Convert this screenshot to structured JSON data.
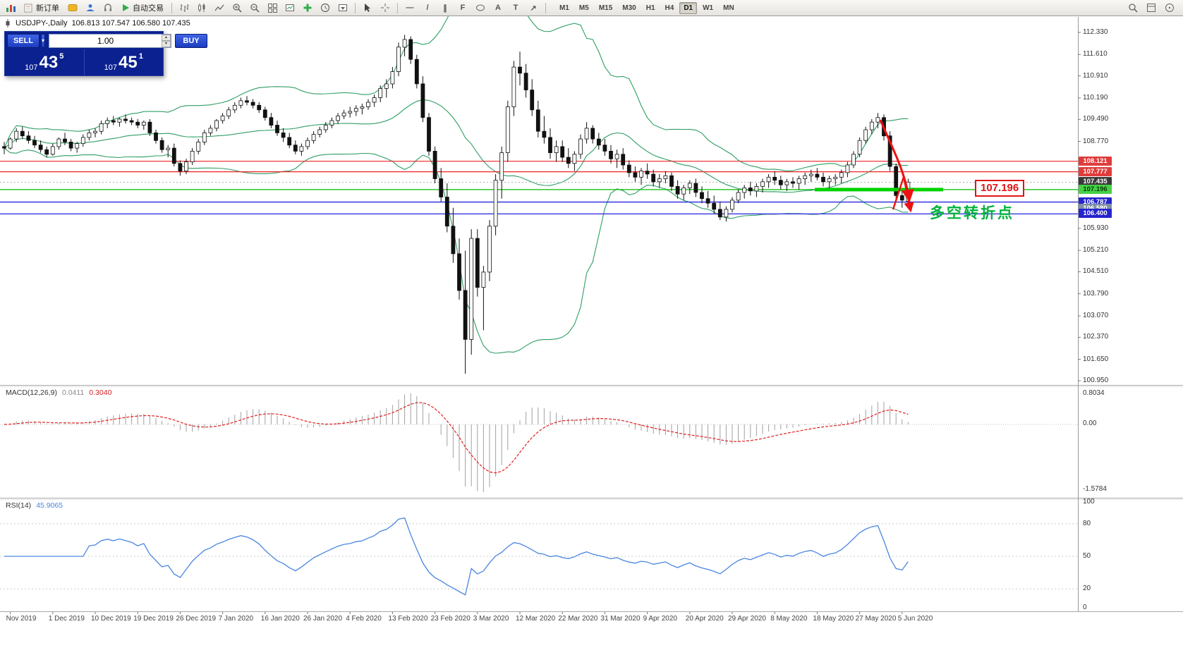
{
  "toolbar": {
    "new_order_label": "新订单",
    "autotrading_label": "自动交易",
    "timeframes": [
      "M1",
      "M5",
      "M15",
      "M30",
      "H1",
      "H4",
      "D1",
      "W1",
      "MN"
    ],
    "active_timeframe": "D1",
    "icons": [
      "terminal-chart-icon",
      "new-order-icon",
      "community-icon",
      "user-profile-icon",
      "support-headset-icon",
      "autotrading-play-icon",
      "bar-chart-mode-icon",
      "candlestick-mode-icon",
      "line-chart-mode-icon",
      "zoom-in-icon",
      "zoom-out-icon",
      "tile-windows-icon",
      "new-chart-icon",
      "indicators-add-icon",
      "periods-clock-icon",
      "templates-icon",
      "cursor-icon",
      "crosshair-icon",
      "horizontal-line-icon",
      "trendline-icon",
      "channel-icon",
      "fibonacci-icon",
      "shapes-icon",
      "text-icon",
      "label-icon",
      "arrows-icon",
      "search-icon",
      "layout-icon",
      "help-icon"
    ]
  },
  "glyphs": {
    "dropdown": "▾",
    "up": "▲",
    "down": "▼",
    "text_tool": "A",
    "label_tool": "T",
    "hline": "—",
    "trendline": "/",
    "channel": "∥",
    "fibo": "F",
    "arrow": "↗"
  },
  "trade_panel": {
    "sell_label": "SELL",
    "buy_label": "BUY",
    "volume": "1.00",
    "sell_price": {
      "whole": "107",
      "pips": "43",
      "point": "5"
    },
    "buy_price": {
      "whole": "107",
      "pips": "45",
      "point": "1"
    }
  },
  "chart": {
    "symbol_period": "USDJPY-,Daily",
    "ohlc": "106.813 107.547 106.580 107.435"
  },
  "price_axis": {
    "grid_labels": [
      "112.330",
      "111.610",
      "110.910",
      "110.190",
      "109.490",
      "108.770",
      "105.930",
      "105.210",
      "104.510",
      "103.790",
      "103.070",
      "102.370",
      "101.650",
      "100.950"
    ],
    "tags": [
      {
        "text": "108.121",
        "bg": "#e03c3c",
        "fg": "#ffffff"
      },
      {
        "text": "107.777",
        "bg": "#e03c3c",
        "fg": "#ffffff"
      },
      {
        "text": "107.435",
        "bg": "#3a3a3a",
        "fg": "#ffffff"
      },
      {
        "text": "107.196",
        "bg": "#47d147",
        "fg": "#053805"
      },
      {
        "text": "106.787",
        "bg": "#2525cc",
        "fg": "#ffffff"
      },
      {
        "text": "106.580",
        "bg": "#7f8fa6",
        "fg": "#ffffff"
      },
      {
        "text": "106.400",
        "bg": "#2525cc",
        "fg": "#ffffff"
      }
    ]
  },
  "indicators": {
    "macd": {
      "label": "MACD(12,26,9)",
      "value_main": "0.0411",
      "value_signal": "0.3040",
      "axis": [
        "0.8034",
        "0.00",
        "-1.5784"
      ]
    },
    "rsi": {
      "label": "RSI(14)",
      "value": "45.9065",
      "axis": [
        "100",
        "80",
        "50",
        "20",
        "0"
      ]
    }
  },
  "annotations": {
    "support_label": "107.196",
    "turning_point": "多空转折点"
  },
  "x_axis": {
    "labels": [
      "Nov 2019",
      "1 Dec 2019",
      "10 Dec 2019",
      "19 Dec 2019",
      "26 Dec 2019",
      "7 Jan 2020",
      "16 Jan 2020",
      "26 Jan 2020",
      "4 Feb 2020",
      "13 Feb 2020",
      "23 Feb 2020",
      "3 Mar 2020",
      "12 Mar 2020",
      "22 Mar 2020",
      "31 Mar 2020",
      "9 Apr 2020",
      "20 Apr 2020",
      "29 Apr 2020",
      "8 May 2020",
      "18 May 2020",
      "27 May 2020",
      "5 Jun 2020"
    ]
  },
  "chart_data": {
    "type": "candlestick",
    "symbol": "USDJPY",
    "period": "Daily",
    "title": "USDJPY-,Daily",
    "bid": 107.435,
    "support_level": 107.196,
    "price_range": [
      100.95,
      112.33
    ],
    "bollinger": {
      "period": 20,
      "deviation": 2
    },
    "macd": {
      "fast": 12,
      "slow": 26,
      "signal": 9,
      "current_main": 0.0411,
      "current_signal": 0.304,
      "scale_max": 0.8034,
      "scale_min": -1.5784
    },
    "rsi": {
      "period": 14,
      "current": 45.9065,
      "levels": [
        80,
        50,
        20
      ]
    },
    "levels": [
      {
        "price": 108.121,
        "color": "#ee2222",
        "width": 1.2
      },
      {
        "price": 107.777,
        "color": "#ee2222",
        "width": 1.2
      },
      {
        "price": 107.196,
        "color": "#00bb00",
        "width": 1.2
      },
      {
        "price": 106.787,
        "color": "#2525dd",
        "width": 1.4
      },
      {
        "price": 106.4,
        "color": "#2525dd",
        "width": 1.2
      }
    ],
    "candles": [
      [
        108.6,
        108.75,
        108.35,
        108.55
      ],
      [
        108.55,
        108.9,
        108.5,
        108.85
      ],
      [
        108.85,
        109.2,
        108.75,
        109.1
      ],
      [
        109.1,
        109.25,
        108.85,
        108.95
      ],
      [
        108.95,
        109.1,
        108.7,
        108.8
      ],
      [
        108.8,
        108.95,
        108.55,
        108.65
      ],
      [
        108.65,
        108.8,
        108.4,
        108.5
      ],
      [
        108.5,
        108.6,
        108.25,
        108.35
      ],
      [
        108.35,
        108.7,
        108.3,
        108.6
      ],
      [
        108.6,
        108.9,
        108.5,
        108.85
      ],
      [
        108.85,
        109.05,
        108.65,
        108.75
      ],
      [
        108.75,
        108.85,
        108.45,
        108.55
      ],
      [
        108.55,
        108.75,
        108.4,
        108.7
      ],
      [
        108.7,
        109.0,
        108.6,
        108.9
      ],
      [
        108.9,
        109.15,
        108.8,
        109.05
      ],
      [
        109.05,
        109.2,
        108.9,
        109.1
      ],
      [
        109.1,
        109.45,
        109.0,
        109.35
      ],
      [
        109.35,
        109.55,
        109.2,
        109.45
      ],
      [
        109.45,
        109.6,
        109.3,
        109.4
      ],
      [
        109.4,
        109.55,
        109.25,
        109.5
      ],
      [
        109.5,
        109.65,
        109.35,
        109.45
      ],
      [
        109.45,
        109.55,
        109.3,
        109.4
      ],
      [
        109.4,
        109.5,
        109.2,
        109.3
      ],
      [
        109.3,
        109.45,
        109.15,
        109.4
      ],
      [
        109.4,
        109.5,
        108.95,
        109.05
      ],
      [
        109.05,
        109.15,
        108.7,
        108.8
      ],
      [
        108.8,
        108.9,
        108.4,
        108.5
      ],
      [
        108.5,
        108.65,
        108.25,
        108.55
      ],
      [
        108.55,
        108.7,
        107.95,
        108.05
      ],
      [
        108.05,
        108.15,
        107.65,
        107.8
      ],
      [
        107.8,
        108.2,
        107.7,
        108.1
      ],
      [
        108.1,
        108.55,
        108.0,
        108.45
      ],
      [
        108.45,
        108.85,
        108.35,
        108.75
      ],
      [
        108.75,
        109.15,
        108.65,
        109.05
      ],
      [
        109.05,
        109.3,
        108.95,
        109.2
      ],
      [
        109.2,
        109.5,
        109.1,
        109.45
      ],
      [
        109.45,
        109.7,
        109.35,
        109.6
      ],
      [
        109.6,
        109.9,
        109.5,
        109.8
      ],
      [
        109.8,
        110.05,
        109.7,
        109.95
      ],
      [
        109.95,
        110.2,
        109.85,
        110.1
      ],
      [
        110.1,
        110.25,
        109.95,
        110.05
      ],
      [
        110.05,
        110.15,
        109.85,
        109.95
      ],
      [
        109.95,
        110.05,
        109.7,
        109.8
      ],
      [
        109.8,
        109.9,
        109.45,
        109.55
      ],
      [
        109.55,
        109.7,
        109.2,
        109.3
      ],
      [
        109.3,
        109.45,
        108.95,
        109.05
      ],
      [
        109.05,
        109.2,
        108.75,
        108.9
      ],
      [
        108.9,
        109.05,
        108.55,
        108.65
      ],
      [
        108.65,
        108.8,
        108.35,
        108.45
      ],
      [
        108.45,
        108.7,
        108.3,
        108.6
      ],
      [
        108.6,
        108.9,
        108.5,
        108.8
      ],
      [
        108.8,
        109.1,
        108.7,
        109.0
      ],
      [
        109.0,
        109.25,
        108.9,
        109.15
      ],
      [
        109.15,
        109.4,
        109.05,
        109.3
      ],
      [
        109.3,
        109.55,
        109.2,
        109.45
      ],
      [
        109.45,
        109.7,
        109.35,
        109.6
      ],
      [
        109.6,
        109.8,
        109.5,
        109.7
      ],
      [
        109.7,
        109.9,
        109.55,
        109.75
      ],
      [
        109.75,
        109.95,
        109.6,
        109.85
      ],
      [
        109.85,
        110.0,
        109.65,
        109.9
      ],
      [
        109.9,
        110.15,
        109.8,
        110.05
      ],
      [
        110.05,
        110.3,
        109.9,
        110.2
      ],
      [
        110.2,
        110.6,
        110.05,
        110.5
      ],
      [
        110.5,
        110.8,
        110.2,
        110.65
      ],
      [
        110.65,
        111.2,
        110.5,
        111.05
      ],
      [
        111.05,
        112.0,
        110.9,
        111.85
      ],
      [
        111.85,
        112.25,
        111.55,
        112.1
      ],
      [
        112.1,
        112.2,
        111.3,
        111.45
      ],
      [
        111.45,
        111.6,
        110.5,
        110.65
      ],
      [
        110.65,
        110.9,
        109.4,
        109.55
      ],
      [
        109.55,
        109.7,
        108.3,
        108.45
      ],
      [
        108.45,
        108.6,
        107.4,
        107.55
      ],
      [
        107.55,
        107.9,
        106.8,
        106.95
      ],
      [
        106.95,
        107.4,
        105.8,
        106.0
      ],
      [
        106.0,
        106.6,
        104.8,
        105.1
      ],
      [
        105.1,
        105.6,
        103.6,
        103.9
      ],
      [
        103.9,
        105.2,
        101.18,
        102.3
      ],
      [
        102.3,
        105.9,
        101.8,
        105.6
      ],
      [
        105.6,
        105.9,
        103.7,
        104.0
      ],
      [
        104.0,
        104.7,
        102.6,
        104.5
      ],
      [
        104.5,
        106.2,
        104.2,
        106.0
      ],
      [
        106.0,
        107.7,
        105.7,
        107.5
      ],
      [
        107.5,
        108.6,
        106.9,
        108.4
      ],
      [
        108.4,
        110.1,
        108.1,
        109.9
      ],
      [
        109.9,
        111.4,
        109.6,
        111.2
      ],
      [
        111.2,
        111.7,
        110.6,
        111.0
      ],
      [
        111.0,
        111.3,
        110.2,
        110.45
      ],
      [
        110.45,
        110.8,
        109.6,
        109.8
      ],
      [
        109.8,
        110.1,
        108.9,
        109.1
      ],
      [
        109.1,
        109.6,
        108.7,
        108.9
      ],
      [
        108.9,
        109.2,
        108.2,
        108.4
      ],
      [
        108.4,
        108.8,
        108.1,
        108.6
      ],
      [
        108.6,
        108.8,
        108.1,
        108.25
      ],
      [
        108.25,
        108.55,
        107.9,
        108.05
      ],
      [
        108.05,
        108.45,
        107.8,
        108.35
      ],
      [
        108.35,
        109.0,
        108.2,
        108.85
      ],
      [
        108.85,
        109.4,
        108.7,
        109.2
      ],
      [
        109.2,
        109.3,
        108.7,
        108.85
      ],
      [
        108.85,
        109.05,
        108.5,
        108.65
      ],
      [
        108.65,
        108.85,
        108.3,
        108.45
      ],
      [
        108.45,
        108.65,
        108.05,
        108.2
      ],
      [
        108.2,
        108.5,
        107.9,
        108.35
      ],
      [
        108.35,
        108.55,
        107.85,
        108.0
      ],
      [
        108.0,
        108.15,
        107.6,
        107.75
      ],
      [
        107.75,
        107.95,
        107.45,
        107.6
      ],
      [
        107.6,
        107.9,
        107.35,
        107.8
      ],
      [
        107.8,
        108.05,
        107.55,
        107.7
      ],
      [
        107.7,
        107.85,
        107.3,
        107.45
      ],
      [
        107.45,
        107.7,
        107.25,
        107.55
      ],
      [
        107.55,
        107.8,
        107.4,
        107.65
      ],
      [
        107.65,
        107.75,
        107.15,
        107.3
      ],
      [
        107.3,
        107.5,
        106.9,
        107.05
      ],
      [
        107.05,
        107.35,
        106.85,
        107.25
      ],
      [
        107.25,
        107.5,
        107.05,
        107.4
      ],
      [
        107.4,
        107.55,
        106.95,
        107.1
      ],
      [
        107.1,
        107.3,
        106.75,
        106.9
      ],
      [
        106.9,
        107.15,
        106.6,
        106.75
      ],
      [
        106.75,
        107.0,
        106.4,
        106.55
      ],
      [
        106.55,
        106.8,
        106.2,
        106.3
      ],
      [
        106.3,
        106.65,
        106.15,
        106.55
      ],
      [
        106.55,
        106.95,
        106.45,
        106.85
      ],
      [
        106.85,
        107.2,
        106.75,
        107.1
      ],
      [
        107.1,
        107.35,
        106.9,
        107.25
      ],
      [
        107.25,
        107.45,
        107.0,
        107.15
      ],
      [
        107.15,
        107.4,
        106.95,
        107.3
      ],
      [
        107.3,
        107.55,
        107.1,
        107.45
      ],
      [
        107.45,
        107.7,
        107.25,
        107.6
      ],
      [
        107.6,
        107.8,
        107.35,
        107.5
      ],
      [
        107.5,
        107.65,
        107.2,
        107.35
      ],
      [
        107.35,
        107.55,
        107.15,
        107.45
      ],
      [
        107.45,
        107.6,
        107.25,
        107.4
      ],
      [
        107.4,
        107.65,
        107.2,
        107.55
      ],
      [
        107.55,
        107.75,
        107.35,
        107.65
      ],
      [
        107.65,
        107.85,
        107.45,
        107.7
      ],
      [
        107.7,
        107.9,
        107.5,
        107.6
      ],
      [
        107.6,
        107.75,
        107.3,
        107.45
      ],
      [
        107.45,
        107.65,
        107.25,
        107.55
      ],
      [
        107.55,
        107.7,
        107.35,
        107.6
      ],
      [
        107.6,
        107.85,
        107.4,
        107.75
      ],
      [
        107.75,
        108.1,
        107.6,
        108.0
      ],
      [
        108.0,
        108.45,
        107.9,
        108.35
      ],
      [
        108.35,
        108.9,
        108.25,
        108.8
      ],
      [
        108.8,
        109.25,
        108.7,
        109.15
      ],
      [
        109.15,
        109.5,
        109.0,
        109.4
      ],
      [
        109.4,
        109.7,
        109.2,
        109.55
      ],
      [
        109.55,
        109.65,
        108.8,
        108.95
      ],
      [
        108.95,
        109.1,
        107.8,
        107.95
      ],
      [
        107.95,
        108.05,
        106.85,
        107.0
      ],
      [
        107.0,
        107.2,
        106.6,
        106.85
      ],
      [
        106.81,
        107.55,
        106.58,
        107.44
      ]
    ]
  }
}
